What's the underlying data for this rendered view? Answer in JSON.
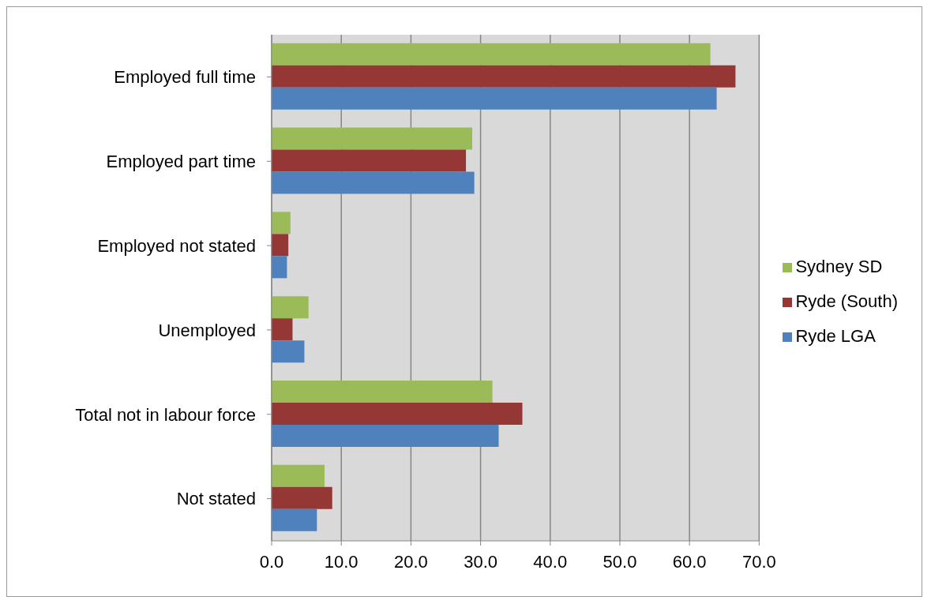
{
  "chart_data": {
    "type": "bar",
    "orientation": "horizontal",
    "categories": [
      "Employed full time",
      "Employed part time",
      "Employed not stated",
      "Unemployed",
      "Total not in labour force",
      "Not stated"
    ],
    "series": [
      {
        "name": "Sydney SD",
        "color": "#9bbb59",
        "values": [
          63.0,
          28.8,
          2.7,
          5.3,
          31.7,
          7.6
        ]
      },
      {
        "name": "Ryde (South)",
        "color": "#953735",
        "values": [
          66.6,
          27.9,
          2.4,
          3.0,
          36.0,
          8.7
        ]
      },
      {
        "name": "Ryde LGA",
        "color": "#4f81bd",
        "values": [
          63.9,
          29.1,
          2.2,
          4.7,
          32.6,
          6.5
        ]
      }
    ],
    "xlim": [
      0,
      70
    ],
    "xticks": [
      {
        "value": 0,
        "label": "0.0"
      },
      {
        "value": 10,
        "label": "10.0"
      },
      {
        "value": 20,
        "label": "20.0"
      },
      {
        "value": 30,
        "label": "30.0"
      },
      {
        "value": 40,
        "label": "40.0"
      },
      {
        "value": 50,
        "label": "50.0"
      },
      {
        "value": 60,
        "label": "60.0"
      },
      {
        "value": 70,
        "label": "70.0"
      }
    ],
    "grid": "x",
    "legend": "right"
  }
}
